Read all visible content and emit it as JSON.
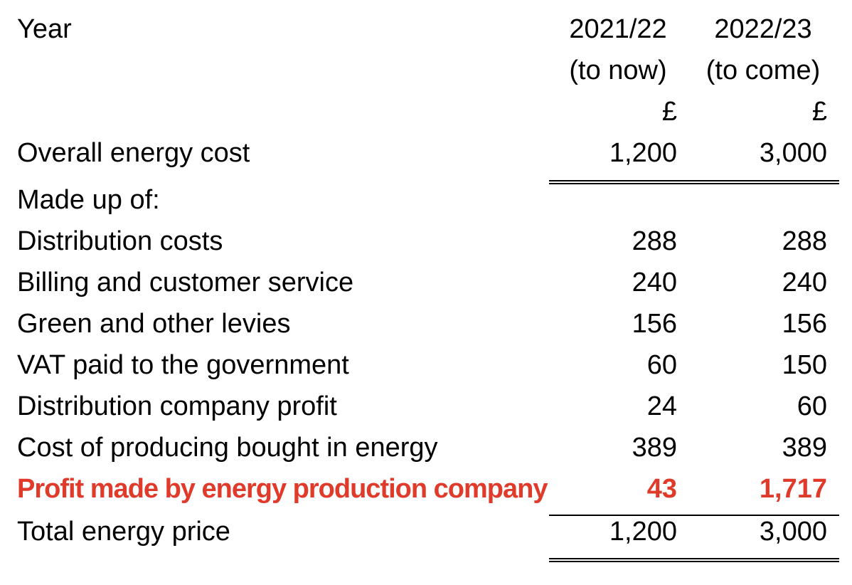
{
  "accent_color": "#e03a2b",
  "table": {
    "header": {
      "row_label": "Year",
      "col1": {
        "year": "2021/22",
        "period": "(to now)",
        "currency": "£"
      },
      "col2": {
        "year": "2022/23",
        "period": "(to come)",
        "currency": "£"
      }
    },
    "overall": {
      "label": "Overall energy cost",
      "col1": "1,200",
      "col2": "3,000"
    },
    "section_heading": "Made up of:",
    "items": [
      {
        "label": "Distribution costs",
        "col1": "288",
        "col2": "288",
        "highlight": false
      },
      {
        "label": "Billing and customer service",
        "col1": "240",
        "col2": "240",
        "highlight": false
      },
      {
        "label": "Green and other levies",
        "col1": "156",
        "col2": "156",
        "highlight": false
      },
      {
        "label": "VAT paid to the government",
        "col1": "60",
        "col2": "150",
        "highlight": false
      },
      {
        "label": "Distribution company profit",
        "col1": "24",
        "col2": "60",
        "highlight": false
      },
      {
        "label": "Cost of producing bought in energy",
        "col1": "389",
        "col2": "389",
        "highlight": false
      },
      {
        "label": "Profit made by energy production company",
        "col1": "43",
        "col2": "1,717",
        "highlight": true
      }
    ],
    "total": {
      "label": "Total energy price",
      "col1": "1,200",
      "col2": "3,000"
    }
  }
}
